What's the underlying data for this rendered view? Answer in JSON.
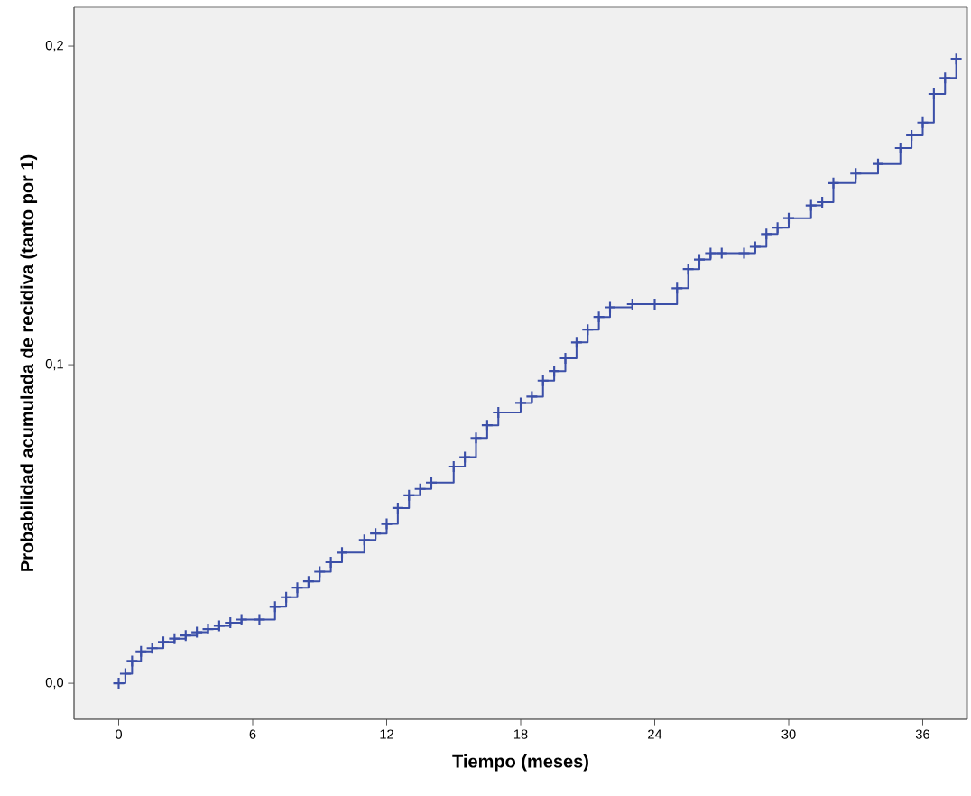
{
  "chart_data": {
    "type": "step",
    "xlabel": "Tiempo (meses)",
    "ylabel": "Probabilidad acumulada de recidiva (tanto por 1)",
    "x": [
      0,
      0.3,
      0.6,
      1,
      1.5,
      2,
      2.5,
      3,
      3.5,
      4,
      4.5,
      5,
      5.5,
      6.3,
      7,
      7.5,
      8,
      8.5,
      9,
      9.5,
      10,
      11,
      11.5,
      12,
      12.5,
      13,
      13.5,
      14,
      15,
      15.5,
      16,
      16.5,
      17,
      18,
      18.5,
      19,
      19.5,
      20,
      20.5,
      21,
      21.5,
      22,
      23,
      24,
      25,
      25.5,
      26,
      26.5,
      27,
      28,
      28.5,
      29,
      29.5,
      30,
      31,
      31.5,
      32,
      33,
      34,
      35,
      35.5,
      36,
      36.5,
      37,
      37.5
    ],
    "series": [
      {
        "color": "#3b4fa8",
        "values": [
          0,
          0.003,
          0.007,
          0.01,
          0.011,
          0.013,
          0.014,
          0.015,
          0.016,
          0.017,
          0.018,
          0.019,
          0.02,
          0.02,
          0.024,
          0.027,
          0.03,
          0.032,
          0.035,
          0.038,
          0.041,
          0.045,
          0.047,
          0.05,
          0.055,
          0.059,
          0.061,
          0.063,
          0.068,
          0.071,
          0.077,
          0.081,
          0.085,
          0.088,
          0.09,
          0.095,
          0.098,
          0.102,
          0.107,
          0.111,
          0.115,
          0.118,
          0.119,
          0.119,
          0.124,
          0.13,
          0.133,
          0.135,
          0.135,
          0.135,
          0.137,
          0.141,
          0.143,
          0.146,
          0.15,
          0.151,
          0.157,
          0.16,
          0.163,
          0.168,
          0.172,
          0.176,
          0.185,
          0.19,
          0.196
        ]
      }
    ],
    "xlim": [
      -2,
      38
    ],
    "ylim": [
      -0.0113,
      0.2122
    ],
    "xticks": [
      0,
      6,
      12,
      18,
      24,
      30,
      36
    ],
    "yticks": [
      {
        "value": 0,
        "label": "0,0"
      },
      {
        "value": 0.1,
        "label": "0,1"
      },
      {
        "value": 0.2,
        "label": "0,2"
      }
    ],
    "marker": "cross",
    "grid": false
  }
}
